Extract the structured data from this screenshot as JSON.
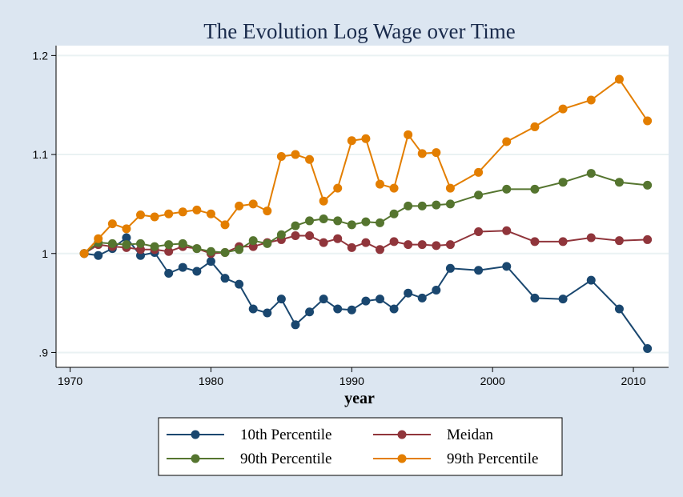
{
  "chart_data": {
    "type": "line",
    "title": "The Evolution Log Wage over Time",
    "xlabel": "year",
    "ylabel": "",
    "xlim": [
      1969,
      2012.5
    ],
    "ylim": [
      0.885,
      1.21
    ],
    "xticks": [
      1970,
      1980,
      1990,
      2000,
      2010
    ],
    "yticks": [
      0.9,
      1,
      1.1,
      1.2
    ],
    "ytick_labels": [
      ".9",
      "1",
      "1.1",
      "1.2"
    ],
    "grid": true,
    "legend_position": "bottom",
    "series": [
      {
        "name": "10th Percentile",
        "color": "#1a476f",
        "x": [
          1971,
          1972,
          1973,
          1974,
          1975,
          1976,
          1977,
          1978,
          1979,
          1980,
          1981,
          1982,
          1983,
          1984,
          1985,
          1986,
          1987,
          1988,
          1989,
          1990,
          1991,
          1992,
          1993,
          1994,
          1995,
          1996,
          1997,
          1999,
          2001,
          2003,
          2005,
          2007,
          2009,
          2011
        ],
        "y": [
          1.0,
          0.998,
          1.005,
          1.016,
          0.998,
          1.001,
          0.98,
          0.986,
          0.982,
          0.992,
          0.975,
          0.969,
          0.944,
          0.94,
          0.954,
          0.928,
          0.941,
          0.954,
          0.944,
          0.943,
          0.952,
          0.954,
          0.944,
          0.96,
          0.955,
          0.963,
          0.985,
          0.983,
          0.987,
          0.955,
          0.954,
          0.973,
          0.944,
          0.904
        ]
      },
      {
        "name": "Meidan",
        "color": "#90353b",
        "x": [
          1971,
          1972,
          1973,
          1974,
          1975,
          1976,
          1977,
          1978,
          1979,
          1980,
          1981,
          1982,
          1983,
          1984,
          1985,
          1986,
          1987,
          1988,
          1989,
          1990,
          1991,
          1992,
          1993,
          1994,
          1995,
          1996,
          1997,
          1999,
          2001,
          2003,
          2005,
          2007,
          2009,
          2011
        ],
        "y": [
          1.0,
          1.009,
          1.007,
          1.006,
          1.004,
          1.004,
          1.002,
          1.007,
          1.005,
          1.0,
          1.001,
          1.007,
          1.007,
          1.011,
          1.014,
          1.018,
          1.018,
          1.011,
          1.015,
          1.006,
          1.011,
          1.004,
          1.012,
          1.009,
          1.009,
          1.008,
          1.009,
          1.022,
          1.023,
          1.012,
          1.012,
          1.016,
          1.013,
          1.014
        ]
      },
      {
        "name": "90th Percentile",
        "color": "#55752f",
        "x": [
          1971,
          1972,
          1973,
          1974,
          1975,
          1976,
          1977,
          1978,
          1979,
          1980,
          1981,
          1982,
          1983,
          1984,
          1985,
          1986,
          1987,
          1988,
          1989,
          1990,
          1991,
          1992,
          1993,
          1994,
          1995,
          1996,
          1997,
          1999,
          2001,
          2003,
          2005,
          2007,
          2009,
          2011
        ],
        "y": [
          1.0,
          1.011,
          1.01,
          1.009,
          1.01,
          1.007,
          1.009,
          1.01,
          1.005,
          1.002,
          1.001,
          1.004,
          1.013,
          1.01,
          1.019,
          1.028,
          1.033,
          1.035,
          1.033,
          1.029,
          1.032,
          1.031,
          1.04,
          1.048,
          1.048,
          1.049,
          1.05,
          1.059,
          1.065,
          1.065,
          1.072,
          1.081,
          1.072,
          1.069
        ]
      },
      {
        "name": "99th Percentile",
        "color": "#e37e00",
        "x": [
          1971,
          1972,
          1973,
          1974,
          1975,
          1976,
          1977,
          1978,
          1979,
          1980,
          1981,
          1982,
          1983,
          1984,
          1985,
          1986,
          1987,
          1988,
          1989,
          1990,
          1991,
          1992,
          1993,
          1994,
          1995,
          1996,
          1997,
          1999,
          2001,
          2003,
          2005,
          2007,
          2009,
          2011
        ],
        "y": [
          1.0,
          1.015,
          1.03,
          1.025,
          1.039,
          1.037,
          1.04,
          1.042,
          1.044,
          1.04,
          1.029,
          1.048,
          1.05,
          1.043,
          1.098,
          1.1,
          1.095,
          1.053,
          1.066,
          1.114,
          1.116,
          1.07,
          1.066,
          1.12,
          1.101,
          1.102,
          1.066,
          1.082,
          1.113,
          1.128,
          1.146,
          1.155,
          1.176,
          1.134
        ]
      }
    ]
  },
  "colors": {
    "background": "#dce6f1",
    "plot_background": "#ffffff",
    "gridline": "#eaf2f3",
    "title": "#1a2b4c"
  }
}
